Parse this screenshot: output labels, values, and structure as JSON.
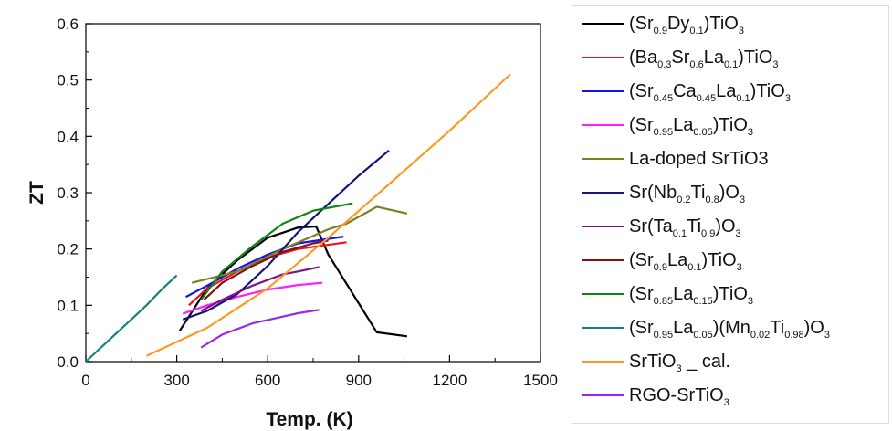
{
  "chart_data": {
    "type": "line",
    "title": "",
    "xlabel": "Temp. (K)",
    "ylabel": "ZT",
    "xlim": [
      0,
      1500
    ],
    "ylim": [
      0,
      0.6
    ],
    "xticks": [
      0,
      300,
      600,
      900,
      1200,
      1500
    ],
    "yticks": [
      0.0,
      0.1,
      0.2,
      0.3,
      0.4,
      0.5,
      0.6
    ],
    "xtick_labels": [
      "0",
      "300",
      "600",
      "900",
      "1200",
      "1500"
    ],
    "ytick_labels": [
      "0.0",
      "0.1",
      "0.2",
      "0.3",
      "0.4",
      "0.5",
      "0.6"
    ],
    "grid": false,
    "legend_position": "right",
    "series": [
      {
        "name": "(Sr0.9Dy0.1)TiO3",
        "label_parts": [
          [
            "(Sr",
            ""
          ],
          [
            "0.9",
            "s"
          ],
          [
            "Dy",
            ""
          ],
          [
            "0.1",
            "s"
          ],
          [
            ")TiO",
            ""
          ],
          [
            "3",
            "s"
          ]
        ],
        "color": "#000000",
        "x": [
          310,
          400,
          500,
          600,
          700,
          760,
          800,
          960,
          1060
        ],
        "y": [
          0.055,
          0.13,
          0.18,
          0.22,
          0.238,
          0.24,
          0.19,
          0.052,
          0.045
        ]
      },
      {
        "name": "(Ba0.3Sr0.6La0.1)TiO3",
        "label_parts": [
          [
            "(Ba",
            ""
          ],
          [
            "0.3",
            "s"
          ],
          [
            "Sr",
            ""
          ],
          [
            "0.6",
            "s"
          ],
          [
            "La",
            ""
          ],
          [
            "0.1",
            "s"
          ],
          [
            ")TiO",
            ""
          ],
          [
            "3",
            "s"
          ]
        ],
        "color": "#e8141e",
        "x": [
          340,
          400,
          500,
          600,
          700,
          860
        ],
        "y": [
          0.1,
          0.13,
          0.16,
          0.185,
          0.2,
          0.212
        ]
      },
      {
        "name": "(Sr0.45Ca0.45La0.1)TiO3",
        "label_parts": [
          [
            "(Sr",
            ""
          ],
          [
            "0.45",
            "s"
          ],
          [
            "Ca",
            ""
          ],
          [
            "0.45",
            "s"
          ],
          [
            "La",
            ""
          ],
          [
            "0.1",
            "s"
          ],
          [
            ")TiO",
            ""
          ],
          [
            "3",
            "s"
          ]
        ],
        "color": "#1414ee",
        "x": [
          330,
          400,
          500,
          600,
          700,
          850
        ],
        "y": [
          0.115,
          0.135,
          0.165,
          0.19,
          0.21,
          0.222
        ]
      },
      {
        "name": "(Sr0.95La0.05)TiO3",
        "label_parts": [
          [
            "(Sr",
            ""
          ],
          [
            "0.95",
            "s"
          ],
          [
            "La",
            ""
          ],
          [
            "0.05",
            "s"
          ],
          [
            ")TiO",
            ""
          ],
          [
            "3",
            "s"
          ]
        ],
        "color": "#ff1eff",
        "x": [
          320,
          400,
          500,
          600,
          700,
          780
        ],
        "y": [
          0.085,
          0.1,
          0.115,
          0.128,
          0.136,
          0.14
        ]
      },
      {
        "name": "La-doped SrTiO3",
        "label_parts": [
          [
            "La-doped SrTiO3",
            ""
          ]
        ],
        "color": "#7f7f22",
        "x": [
          350,
          500,
          650,
          800,
          860,
          960,
          1060
        ],
        "y": [
          0.14,
          0.16,
          0.2,
          0.235,
          0.245,
          0.275,
          0.263
        ]
      },
      {
        "name": "Sr(Nb0.2Ti0.8)O3",
        "label_parts": [
          [
            "Sr(Nb",
            ""
          ],
          [
            "0.2",
            "s"
          ],
          [
            "Ti",
            ""
          ],
          [
            "0.8",
            "s"
          ],
          [
            ")O",
            ""
          ],
          [
            "3",
            "s"
          ]
        ],
        "color": "#14147f",
        "x": [
          320,
          400,
          500,
          600,
          700,
          800,
          900,
          1000
        ],
        "y": [
          0.075,
          0.09,
          0.12,
          0.17,
          0.23,
          0.28,
          0.33,
          0.375
        ]
      },
      {
        "name": "Sr(Ta0.1Ti0.9)O3",
        "label_parts": [
          [
            "Sr(Ta",
            ""
          ],
          [
            "0.1",
            "s"
          ],
          [
            "Ti",
            ""
          ],
          [
            "0.9",
            "s"
          ],
          [
            ")O",
            ""
          ],
          [
            "3",
            "s"
          ]
        ],
        "color": "#7f147f",
        "x": [
          380,
          450,
          550,
          650,
          700,
          770
        ],
        "y": [
          0.09,
          0.11,
          0.135,
          0.155,
          0.16,
          0.168
        ]
      },
      {
        "name": "(Sr0.9La0.1)TiO3",
        "label_parts": [
          [
            "(Sr",
            ""
          ],
          [
            "0.9",
            "s"
          ],
          [
            "La",
            ""
          ],
          [
            "0.1",
            "s"
          ],
          [
            ")TiO",
            ""
          ],
          [
            "3",
            "s"
          ]
        ],
        "color": "#7f1414",
        "x": [
          390,
          450,
          550,
          650,
          750,
          800
        ],
        "y": [
          0.11,
          0.14,
          0.17,
          0.195,
          0.21,
          0.215
        ]
      },
      {
        "name": "(Sr0.85La0.15)TiO3",
        "label_parts": [
          [
            "(Sr",
            ""
          ],
          [
            "0.85",
            "s"
          ],
          [
            "La",
            ""
          ],
          [
            "0.15",
            "s"
          ],
          [
            ")TiO",
            ""
          ],
          [
            "3",
            "s"
          ]
        ],
        "color": "#148214",
        "x": [
          380,
          450,
          550,
          650,
          750,
          880
        ],
        "y": [
          0.11,
          0.16,
          0.205,
          0.245,
          0.268,
          0.281
        ]
      },
      {
        "name": "(Sr0.95La0.05)(Mn0.02Ti0.98)O3",
        "label_parts": [
          [
            "(Sr",
            ""
          ],
          [
            "0.95",
            "s"
          ],
          [
            "La",
            ""
          ],
          [
            "0.05",
            "s"
          ],
          [
            ")(Mn",
            ""
          ],
          [
            "0.02",
            "s"
          ],
          [
            "Ti",
            ""
          ],
          [
            "0.98",
            "s"
          ],
          [
            ")O",
            ""
          ],
          [
            "3",
            "s"
          ]
        ],
        "color": "#148282",
        "x": [
          0,
          50,
          100,
          150,
          200,
          250,
          300
        ],
        "y": [
          0.0,
          0.025,
          0.05,
          0.075,
          0.1,
          0.128,
          0.153
        ]
      },
      {
        "name": "SrTiO3 _ cal.",
        "label_parts": [
          [
            "SrTiO",
            ""
          ],
          [
            "3",
            "s"
          ],
          [
            " _ cal.",
            ""
          ]
        ],
        "color": "#ff9628",
        "x": [
          200,
          400,
          600,
          800,
          1000,
          1200,
          1400
        ],
        "y": [
          0.01,
          0.06,
          0.13,
          0.22,
          0.315,
          0.41,
          0.51
        ]
      },
      {
        "name": "RGO-SrTiO3",
        "label_parts": [
          [
            "RGO-SrTiO",
            ""
          ],
          [
            "3",
            "s"
          ]
        ],
        "color": "#9628eb",
        "x": [
          380,
          450,
          550,
          650,
          700,
          770
        ],
        "y": [
          0.025,
          0.048,
          0.068,
          0.08,
          0.086,
          0.092
        ]
      }
    ]
  }
}
